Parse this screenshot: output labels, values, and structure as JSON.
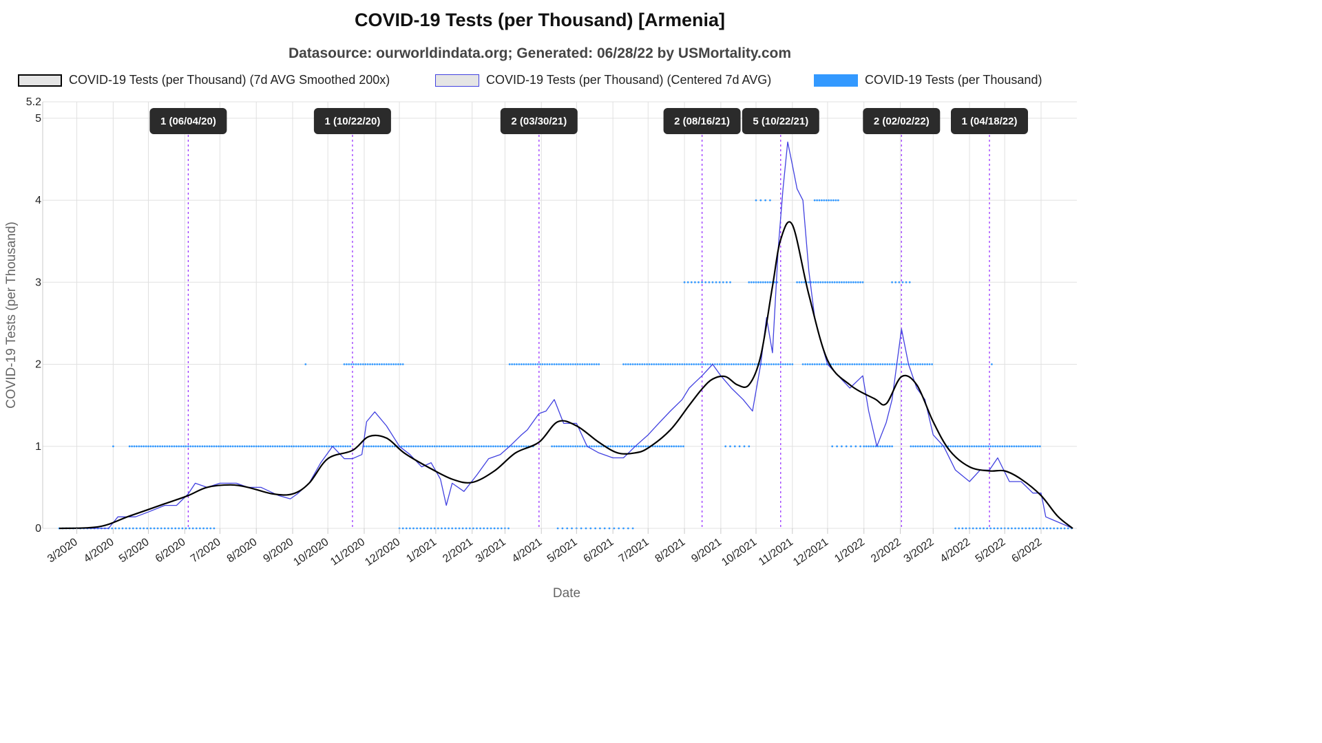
{
  "chart_data": {
    "type": "line",
    "title": "COVID-19 Tests (per Thousand) [Armenia]",
    "subtitle": "Datasource: ourworldindata.org; Generated: 06/28/22 by USMortality.com",
    "xlabel": "Date",
    "ylabel": "COVID-19 Tests (per Thousand)",
    "ylim": [
      0,
      5.2
    ],
    "yticks": [
      "0",
      "1",
      "2",
      "3",
      "4",
      "5",
      "5.2"
    ],
    "xticks": [
      "3/2020",
      "4/2020",
      "5/2020",
      "6/2020",
      "7/2020",
      "8/2020",
      "9/2020",
      "10/2020",
      "11/2020",
      "12/2020",
      "1/2021",
      "2/2021",
      "3/2021",
      "4/2021",
      "5/2021",
      "6/2021",
      "7/2021",
      "8/2021",
      "9/2021",
      "10/2021",
      "11/2021",
      "12/2021",
      "1/2022",
      "2/2022",
      "3/2022",
      "4/2022",
      "5/2022",
      "6/2022"
    ],
    "grid": true,
    "legend_position": "top",
    "series": [
      {
        "name": "COVID-19 Tests (per Thousand) (7d AVG Smoothed 200x)",
        "color": "#000000",
        "style": "line",
        "x": [
          "2020-02-15",
          "2020-03-20",
          "2020-04-15",
          "2020-05-15",
          "2020-06-04",
          "2020-06-20",
          "2020-07-10",
          "2020-07-25",
          "2020-08-15",
          "2020-09-01",
          "2020-09-15",
          "2020-10-01",
          "2020-10-22",
          "2020-11-05",
          "2020-11-20",
          "2020-12-05",
          "2020-12-25",
          "2021-01-15",
          "2021-02-01",
          "2021-02-20",
          "2021-03-10",
          "2021-03-30",
          "2021-04-15",
          "2021-05-01",
          "2021-05-20",
          "2021-06-05",
          "2021-06-20",
          "2021-07-01",
          "2021-07-20",
          "2021-08-05",
          "2021-08-16",
          "2021-08-25",
          "2021-09-05",
          "2021-09-15",
          "2021-09-25",
          "2021-10-05",
          "2021-10-15",
          "2021-10-22",
          "2021-11-01",
          "2021-11-15",
          "2021-12-01",
          "2021-12-20",
          "2022-01-10",
          "2022-01-20",
          "2022-02-02",
          "2022-02-15",
          "2022-03-01",
          "2022-03-15",
          "2022-04-01",
          "2022-04-18",
          "2022-05-01",
          "2022-05-15",
          "2022-06-01",
          "2022-06-15",
          "2022-06-28"
        ],
        "y": [
          0,
          0.02,
          0.15,
          0.3,
          0.4,
          0.5,
          0.53,
          0.5,
          0.42,
          0.42,
          0.55,
          0.85,
          0.95,
          1.12,
          1.1,
          0.92,
          0.75,
          0.6,
          0.56,
          0.7,
          0.92,
          1.05,
          1.3,
          1.25,
          1.05,
          0.92,
          0.92,
          0.98,
          1.2,
          1.5,
          1.7,
          1.82,
          1.85,
          1.75,
          1.75,
          2.1,
          2.95,
          3.52,
          3.7,
          2.85,
          2.05,
          1.75,
          1.58,
          1.52,
          1.85,
          1.75,
          1.3,
          0.95,
          0.75,
          0.7,
          0.7,
          0.6,
          0.4,
          0.15,
          0
        ]
      },
      {
        "name": "COVID-19 Tests (per Thousand) (Centered 7d AVG)",
        "color": "#4040e0",
        "style": "line",
        "x": [
          "2020-02-15",
          "2020-03-28",
          "2020-04-05",
          "2020-04-20",
          "2020-05-01",
          "2020-05-15",
          "2020-05-25",
          "2020-06-04",
          "2020-06-10",
          "2020-06-20",
          "2020-07-01",
          "2020-07-15",
          "2020-07-25",
          "2020-08-05",
          "2020-08-20",
          "2020-08-30",
          "2020-09-05",
          "2020-09-15",
          "2020-09-25",
          "2020-10-05",
          "2020-10-15",
          "2020-10-22",
          "2020-10-30",
          "2020-11-03",
          "2020-11-10",
          "2020-11-20",
          "2020-12-01",
          "2020-12-10",
          "2020-12-20",
          "2020-12-28",
          "2021-01-05",
          "2021-01-10",
          "2021-01-15",
          "2021-01-25",
          "2021-02-05",
          "2021-02-15",
          "2021-02-25",
          "2021-03-05",
          "2021-03-15",
          "2021-03-20",
          "2021-03-30",
          "2021-04-05",
          "2021-04-12",
          "2021-04-20",
          "2021-05-01",
          "2021-05-10",
          "2021-05-20",
          "2021-06-01",
          "2021-06-10",
          "2021-06-20",
          "2021-07-01",
          "2021-07-10",
          "2021-07-20",
          "2021-07-30",
          "2021-08-05",
          "2021-08-10",
          "2021-08-16",
          "2021-08-25",
          "2021-09-01",
          "2021-09-10",
          "2021-09-20",
          "2021-09-28",
          "2021-10-05",
          "2021-10-10",
          "2021-10-15",
          "2021-10-20",
          "2021-10-24",
          "2021-10-28",
          "2021-11-01",
          "2021-11-05",
          "2021-11-10",
          "2021-11-15",
          "2021-11-20",
          "2021-11-25",
          "2021-12-01",
          "2021-12-10",
          "2021-12-20",
          "2021-12-31",
          "2022-01-05",
          "2022-01-12",
          "2022-01-20",
          "2022-01-25",
          "2022-02-02",
          "2022-02-08",
          "2022-02-15",
          "2022-02-22",
          "2022-03-01",
          "2022-03-10",
          "2022-03-20",
          "2022-04-01",
          "2022-04-10",
          "2022-04-18",
          "2022-04-25",
          "2022-05-05",
          "2022-05-15",
          "2022-05-25",
          "2022-06-01",
          "2022-06-05",
          "2022-06-28"
        ],
        "y": [
          0,
          0,
          0.14,
          0.14,
          0.2,
          0.28,
          0.28,
          0.42,
          0.55,
          0.5,
          0.55,
          0.55,
          0.5,
          0.5,
          0.4,
          0.36,
          0.42,
          0.55,
          0.8,
          1.0,
          0.85,
          0.85,
          0.9,
          1.3,
          1.42,
          1.25,
          1.0,
          0.9,
          0.75,
          0.8,
          0.6,
          0.28,
          0.55,
          0.45,
          0.65,
          0.85,
          0.9,
          1.0,
          1.14,
          1.2,
          1.4,
          1.43,
          1.57,
          1.28,
          1.28,
          1.0,
          0.92,
          0.86,
          0.86,
          1.0,
          1.14,
          1.28,
          1.43,
          1.57,
          1.71,
          1.78,
          1.86,
          2.0,
          1.86,
          1.71,
          1.57,
          1.43,
          2.0,
          2.57,
          2.14,
          3.43,
          4.14,
          4.71,
          4.43,
          4.14,
          4.0,
          3.14,
          2.57,
          2.29,
          2.0,
          1.86,
          1.71,
          1.86,
          1.43,
          1.0,
          1.29,
          1.57,
          2.43,
          2.0,
          1.71,
          1.57,
          1.14,
          1.0,
          0.71,
          0.57,
          0.71,
          0.71,
          0.86,
          0.57,
          0.57,
          0.43,
          0.43,
          0.14,
          0
        ]
      },
      {
        "name": "COVID-19 Tests (per Thousand)",
        "color": "#3399ff",
        "style": "points",
        "segments": [
          {
            "y": 0,
            "from": "2020-02-15",
            "to": "2020-06-28",
            "step_days": 3
          },
          {
            "y": 1,
            "from": "2020-04-01",
            "to": "2020-04-02",
            "step_days": 3
          },
          {
            "y": 1,
            "from": "2020-04-15",
            "to": "2020-10-20",
            "step_days": 2
          },
          {
            "y": 2,
            "from": "2020-09-12",
            "to": "2020-09-13",
            "step_days": 3
          },
          {
            "y": 2,
            "from": "2020-10-15",
            "to": "2020-12-05",
            "step_days": 2
          },
          {
            "y": 1,
            "from": "2020-11-01",
            "to": "2021-03-25",
            "step_days": 2
          },
          {
            "y": 0,
            "from": "2020-12-01",
            "to": "2021-03-05",
            "step_days": 3
          },
          {
            "y": 2,
            "from": "2021-03-05",
            "to": "2021-05-20",
            "step_days": 2
          },
          {
            "y": 1,
            "from": "2021-04-10",
            "to": "2021-08-01",
            "step_days": 2
          },
          {
            "y": 0,
            "from": "2021-04-15",
            "to": "2021-06-20",
            "step_days": 4
          },
          {
            "y": 2,
            "from": "2021-06-10",
            "to": "2021-11-01",
            "step_days": 2
          },
          {
            "y": 3,
            "from": "2021-08-01",
            "to": "2021-09-10",
            "step_days": 3
          },
          {
            "y": 1,
            "from": "2021-09-05",
            "to": "2021-09-25",
            "step_days": 4
          },
          {
            "y": 3,
            "from": "2021-09-25",
            "to": "2021-10-20",
            "step_days": 2
          },
          {
            "y": 4,
            "from": "2021-10-01",
            "to": "2021-10-15",
            "step_days": 4
          },
          {
            "y": 4,
            "from": "2021-11-20",
            "to": "2021-12-10",
            "step_days": 2
          },
          {
            "y": 3,
            "from": "2021-11-05",
            "to": "2022-01-01",
            "step_days": 2
          },
          {
            "y": 2,
            "from": "2021-11-10",
            "to": "2022-03-01",
            "step_days": 2
          },
          {
            "y": 1,
            "from": "2021-12-05",
            "to": "2022-01-01",
            "step_days": 4
          },
          {
            "y": 1,
            "from": "2022-01-01",
            "to": "2022-01-25",
            "step_days": 2
          },
          {
            "y": 3,
            "from": "2022-01-25",
            "to": "2022-02-10",
            "step_days": 3
          },
          {
            "y": 1,
            "from": "2022-02-10",
            "to": "2022-06-01",
            "step_days": 2
          },
          {
            "y": 0,
            "from": "2022-03-20",
            "to": "2022-06-28",
            "step_days": 3
          },
          {
            "y": 2,
            "from": "2022-04-20",
            "to": "2022-04-21",
            "step_days": 3
          }
        ]
      }
    ],
    "annotations": [
      {
        "label": "1 (06/04/20)",
        "date": "2020-06-04"
      },
      {
        "label": "1 (10/22/20)",
        "date": "2020-10-22"
      },
      {
        "label": "2 (03/30/21)",
        "date": "2021-03-30"
      },
      {
        "label": "2 (08/16/21)",
        "date": "2021-08-16"
      },
      {
        "label": "5 (10/22/21)",
        "date": "2021-10-22"
      },
      {
        "label": "2 (02/02/22)",
        "date": "2022-02-02"
      },
      {
        "label": "1 (04/18/22)",
        "date": "2022-04-18"
      }
    ],
    "annotation_line_color": "#9933ff",
    "grid_color": "#e0e0e0"
  }
}
